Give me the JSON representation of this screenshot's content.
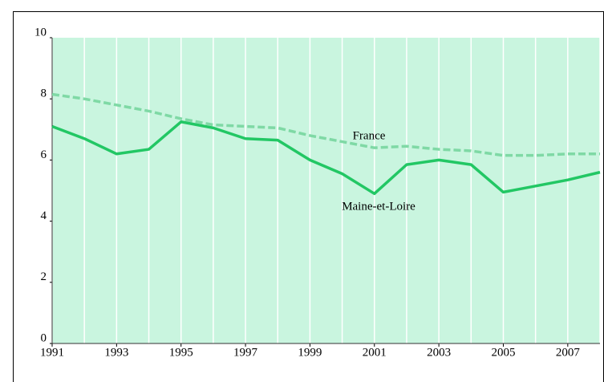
{
  "chart_data": {
    "type": "line",
    "x": [
      1991,
      1992,
      1993,
      1994,
      1995,
      1996,
      1997,
      1998,
      1999,
      2000,
      2001,
      2002,
      2003,
      2004,
      2005,
      2006,
      2007,
      2008
    ],
    "series": [
      {
        "name": "France",
        "color": "#7fd9a5",
        "dashed": true,
        "values": [
          8.15,
          8.0,
          7.8,
          7.6,
          7.35,
          7.15,
          7.1,
          7.05,
          6.8,
          6.6,
          6.4,
          6.45,
          6.35,
          6.3,
          6.15,
          6.15,
          6.2,
          6.2
        ]
      },
      {
        "name": "Maine-et-Loire",
        "color": "#22c764",
        "dashed": false,
        "values": [
          7.1,
          6.7,
          6.2,
          6.35,
          7.25,
          7.05,
          6.7,
          6.65,
          6.0,
          5.55,
          4.9,
          5.85,
          6.0,
          5.85,
          4.95,
          5.15,
          5.35,
          5.6
        ]
      }
    ],
    "xlim": [
      1991,
      2008
    ],
    "xticks": [
      1991,
      1993,
      1995,
      1997,
      1999,
      2001,
      2003,
      2005,
      2007
    ],
    "ylim": [
      0,
      10
    ],
    "yticks": [
      0,
      2,
      4,
      6,
      8,
      10
    ],
    "background": "#c9f5df"
  }
}
